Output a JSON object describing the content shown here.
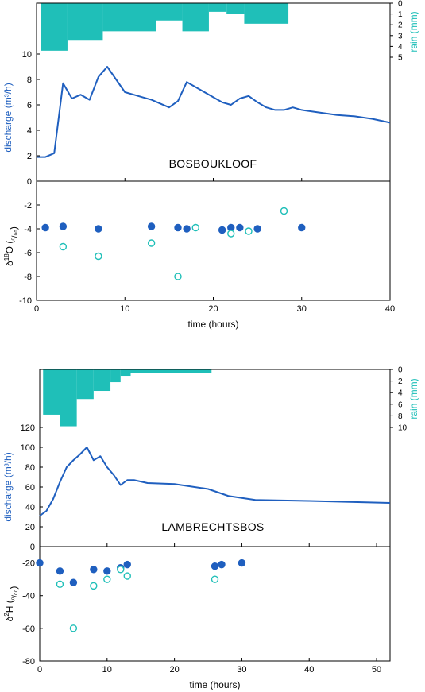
{
  "colors": {
    "discharge": "#1f5fbf",
    "rain": "#1fbfb8",
    "marker": "#1f5fbf",
    "axis": "#000000"
  },
  "chart_data": [
    {
      "type": "line",
      "site_label": "BOSBOUKLOOF",
      "xlabel": "time (hours)",
      "xlim": [
        0,
        40
      ],
      "x_ticks": [
        0,
        10,
        20,
        30,
        40
      ],
      "discharge": {
        "ylabel": "discharge (m³/h)",
        "ylim": [
          0,
          12
        ],
        "y_ticks": [
          0,
          2,
          4,
          6,
          8,
          10
        ],
        "series": [
          {
            "x": [
              0,
              1,
              2,
              3,
              4,
              5,
              6,
              7,
              8,
              9,
              10,
              11,
              12,
              13,
              14,
              15,
              16,
              17,
              18,
              19,
              20,
              21,
              22,
              23,
              24,
              25,
              26,
              27,
              28,
              29,
              30,
              32,
              34,
              36,
              38,
              40
            ],
            "y": [
              1.9,
              1.9,
              2.2,
              7.7,
              6.5,
              6.8,
              6.4,
              8.2,
              9.0,
              8.0,
              7.0,
              6.8,
              6.6,
              6.4,
              6.1,
              5.8,
              6.3,
              7.8,
              7.4,
              7.0,
              6.6,
              6.2,
              6.0,
              6.5,
              6.7,
              6.2,
              5.8,
              5.6,
              5.6,
              5.8,
              5.6,
              5.4,
              5.2,
              5.1,
              4.9,
              4.6
            ]
          }
        ]
      },
      "rain": {
        "ylabel": "rain (mm)",
        "ylim": [
          0,
          5
        ],
        "y_ticks": [
          0,
          1,
          2,
          3,
          4,
          5
        ],
        "bars": [
          {
            "x0": 0.5,
            "x1": 3.5,
            "v": 4.4
          },
          {
            "x0": 3.5,
            "x1": 7.5,
            "v": 3.4
          },
          {
            "x0": 7.5,
            "x1": 13.5,
            "v": 2.6
          },
          {
            "x0": 13.5,
            "x1": 16.5,
            "v": 1.6
          },
          {
            "x0": 16.5,
            "x1": 19.5,
            "v": 2.6
          },
          {
            "x0": 19.5,
            "x1": 21.5,
            "v": 0.8
          },
          {
            "x0": 21.5,
            "x1": 23.5,
            "v": 1.0
          },
          {
            "x0": 23.5,
            "x1": 28.5,
            "v": 1.9
          }
        ]
      },
      "isotope": {
        "ylabel_prefix": "δ",
        "ylabel_sup": "18",
        "ylabel_mid": "O (",
        "ylabel_unit": "⁰/₀₀",
        "ylabel_end": ")",
        "ylim": [
          -10,
          0
        ],
        "y_ticks": [
          -10,
          -8,
          -6,
          -4,
          -2
        ],
        "series": [
          {
            "style": "filled",
            "x": [
              1,
              3,
              7,
              13,
              16,
              17,
              21,
              22,
              23,
              25,
              30
            ],
            "y": [
              -3.9,
              -3.8,
              -4.0,
              -3.8,
              -3.9,
              -4.0,
              -4.1,
              -3.9,
              -3.9,
              -4.0,
              -3.9
            ]
          },
          {
            "style": "open",
            "x": [
              3,
              7,
              13,
              16,
              18,
              22,
              24,
              28
            ],
            "y": [
              -5.5,
              -6.3,
              -5.2,
              -8.0,
              -3.9,
              -4.4,
              -4.2,
              -2.5
            ]
          }
        ]
      }
    },
    {
      "type": "line",
      "site_label": "LAMBRECHTSBOS",
      "xlabel": "time (hours)",
      "xlim": [
        0,
        52
      ],
      "x_ticks": [
        0,
        10,
        20,
        30,
        40,
        50
      ],
      "discharge": {
        "ylabel": "discharge (m³/h)",
        "ylim": [
          0,
          120
        ],
        "y_ticks": [
          0,
          20,
          40,
          60,
          80,
          100,
          120
        ],
        "series": [
          {
            "x": [
              0,
              1,
              2,
              3,
              4,
              5,
              6,
              7,
              8,
              9,
              10,
              11,
              12,
              13,
              14,
              16,
              20,
              25,
              28,
              32,
              40,
              46,
              52
            ],
            "y": [
              31,
              36,
              48,
              65,
              80,
              87,
              93,
              100,
              87,
              91,
              80,
              72,
              62,
              67,
              67,
              64,
              63,
              58,
              51,
              47,
              46,
              45,
              44
            ]
          }
        ]
      },
      "rain": {
        "ylabel": "rain (mm)",
        "ylim": [
          0,
          10
        ],
        "y_ticks": [
          0,
          2,
          4,
          6,
          8,
          10
        ],
        "bars": [
          {
            "x0": 0.5,
            "x1": 3.0,
            "v": 7.8
          },
          {
            "x0": 3.0,
            "x1": 5.5,
            "v": 9.8
          },
          {
            "x0": 5.5,
            "x1": 8.0,
            "v": 5.1
          },
          {
            "x0": 8.0,
            "x1": 10.5,
            "v": 3.7
          },
          {
            "x0": 10.5,
            "x1": 12.0,
            "v": 2.2
          },
          {
            "x0": 12.0,
            "x1": 13.5,
            "v": 1.1
          },
          {
            "x0": 13.5,
            "x1": 25.5,
            "v": 0.6
          }
        ]
      },
      "isotope": {
        "ylabel_prefix": "δ",
        "ylabel_sup": "2",
        "ylabel_mid": "H (",
        "ylabel_unit": "⁰/₀₀",
        "ylabel_end": ")",
        "ylim": [
          -80,
          -10
        ],
        "y_ticks": [
          -80,
          -60,
          -40,
          -20
        ],
        "series": [
          {
            "style": "filled",
            "x": [
              0,
              3,
              5,
              8,
              10,
              12,
              13,
              26,
              27,
              30
            ],
            "y": [
              -20,
              -25,
              -32,
              -24,
              -25,
              -23,
              -21,
              -22,
              -21,
              -20
            ]
          },
          {
            "style": "open",
            "x": [
              3,
              5,
              8,
              10,
              12,
              13,
              26
            ],
            "y": [
              -33,
              -60,
              -34,
              -30,
              -24,
              -28,
              -30
            ]
          }
        ]
      }
    }
  ]
}
